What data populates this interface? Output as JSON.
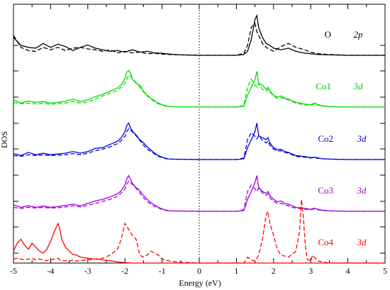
{
  "chart_data": {
    "type": "line",
    "title": "",
    "xlabel": "Energy (eV)",
    "ylabel": "DOS",
    "xlim": [
      -5,
      5
    ],
    "x_ticks": [
      -5,
      -4,
      -3,
      -2,
      -1,
      0,
      1,
      2,
      3,
      4,
      5
    ],
    "fermi_level": 0,
    "grid": false,
    "legend": "inline labels at right of each panel",
    "line_styles": [
      "solid",
      "dashed"
    ],
    "series": [
      {
        "name": "O",
        "orbital": "2p",
        "color": "#000000",
        "label_color": "#000000",
        "x": [
          -5,
          -4.8,
          -4.6,
          -4.4,
          -4.2,
          -4,
          -3.8,
          -3.6,
          -3.4,
          -3.2,
          -3,
          -2.8,
          -2.6,
          -2.4,
          -2.2,
          -2,
          -1.8,
          -1.6,
          -1.4,
          -1.2,
          -1,
          -0.8,
          -0.5,
          0,
          1,
          1.2,
          1.3,
          1.4,
          1.5,
          1.55,
          1.6,
          1.7,
          1.8,
          1.9,
          2,
          2.2,
          2.4,
          2.6,
          2.8,
          3,
          3.2,
          3.5,
          4,
          4.5,
          5
        ],
        "solid": [
          0.45,
          0.25,
          0.2,
          0.18,
          0.3,
          0.2,
          0.28,
          0.22,
          0.12,
          0.2,
          0.26,
          0.18,
          0.14,
          0.1,
          0.12,
          0.08,
          0.14,
          0.08,
          0.1,
          0.06,
          0.05,
          0.03,
          0.01,
          0,
          0,
          0.02,
          0.1,
          0.4,
          0.9,
          1.0,
          0.7,
          0.45,
          0.3,
          0.25,
          0.18,
          0.14,
          0.18,
          0.1,
          0.06,
          0.04,
          0.02,
          0.01,
          0,
          0,
          0
        ],
        "dashed": [
          0.5,
          0.2,
          0.12,
          0.1,
          0.2,
          0.14,
          0.2,
          0.12,
          0.18,
          0.2,
          0.16,
          0.14,
          0.1,
          0.14,
          0.06,
          0.1,
          0.06,
          0.08,
          0.04,
          0.05,
          0.03,
          0.02,
          0.01,
          0,
          0,
          0.05,
          0.25,
          0.7,
          0.8,
          0.6,
          0.5,
          0.3,
          0.2,
          0.15,
          0.1,
          0.22,
          0.3,
          0.2,
          0.15,
          0.08,
          0.04,
          0.02,
          0,
          0,
          0
        ]
      },
      {
        "name": "Co1",
        "orbital": "3d",
        "color": "#00e000",
        "label_color": "#00c800",
        "x": [
          -5,
          -4.8,
          -4.6,
          -4.4,
          -4.2,
          -4,
          -3.8,
          -3.6,
          -3.4,
          -3.2,
          -3,
          -2.8,
          -2.6,
          -2.4,
          -2.2,
          -2.1,
          -2,
          -1.95,
          -1.9,
          -1.85,
          -1.8,
          -1.7,
          -1.6,
          -1.5,
          -1.4,
          -1.3,
          -1.2,
          -1.1,
          -1,
          -0.9,
          -0.8,
          0,
          1,
          1.2,
          1.3,
          1.4,
          1.5,
          1.55,
          1.6,
          1.7,
          1.8,
          1.85,
          1.9,
          2,
          2.1,
          2.2,
          2.3,
          2.4,
          2.5,
          2.6,
          2.8,
          3,
          3.1,
          3.2,
          3.3,
          3.5,
          4,
          5
        ],
        "solid": [
          0.18,
          0.1,
          0.15,
          0.12,
          0.14,
          0.1,
          0.12,
          0.15,
          0.2,
          0.14,
          0.18,
          0.26,
          0.32,
          0.4,
          0.48,
          0.56,
          0.72,
          0.88,
          0.92,
          0.86,
          0.7,
          0.6,
          0.55,
          0.4,
          0.3,
          0.22,
          0.16,
          0.1,
          0.06,
          0.03,
          0.01,
          0,
          0,
          0.02,
          0.3,
          0.5,
          0.7,
          0.9,
          0.6,
          0.55,
          0.45,
          0.5,
          0.4,
          0.3,
          0.25,
          0.28,
          0.22,
          0.2,
          0.16,
          0.12,
          0.08,
          0.06,
          0.1,
          0.06,
          0.04,
          0.01,
          0,
          0
        ],
        "dashed": [
          0.12,
          0.08,
          0.1,
          0.08,
          0.1,
          0.07,
          0.09,
          0.1,
          0.14,
          0.1,
          0.13,
          0.2,
          0.28,
          0.35,
          0.42,
          0.5,
          0.6,
          0.7,
          0.8,
          0.78,
          0.72,
          0.62,
          0.5,
          0.38,
          0.28,
          0.2,
          0.14,
          0.08,
          0.05,
          0.02,
          0.01,
          0,
          0,
          0.04,
          0.5,
          0.7,
          0.55,
          0.5,
          0.6,
          0.45,
          0.4,
          0.45,
          0.38,
          0.28,
          0.22,
          0.24,
          0.2,
          0.18,
          0.14,
          0.1,
          0.06,
          0.05,
          0.08,
          0.05,
          0.03,
          0.01,
          0,
          0
        ]
      },
      {
        "name": "Co2",
        "orbital": "3d",
        "color": "#0000e0",
        "label_color": "#0000e0",
        "x": [
          -5,
          -4.8,
          -4.6,
          -4.4,
          -4.2,
          -4,
          -3.8,
          -3.6,
          -3.4,
          -3.2,
          -3,
          -2.8,
          -2.6,
          -2.4,
          -2.2,
          -2.1,
          -2,
          -1.95,
          -1.9,
          -1.85,
          -1.8,
          -1.7,
          -1.6,
          -1.5,
          -1.4,
          -1.3,
          -1.2,
          -1.1,
          -1,
          -0.9,
          -0.8,
          0,
          1,
          1.2,
          1.3,
          1.4,
          1.5,
          1.55,
          1.6,
          1.7,
          1.8,
          1.85,
          1.9,
          2,
          2.1,
          2.2,
          2.3,
          2.4,
          2.5,
          2.6,
          2.8,
          3,
          3.1,
          3.2,
          3.3,
          3.5,
          4,
          5
        ],
        "solid": [
          0.15,
          0.1,
          0.18,
          0.12,
          0.16,
          0.12,
          0.14,
          0.16,
          0.2,
          0.16,
          0.2,
          0.28,
          0.3,
          0.38,
          0.46,
          0.55,
          0.7,
          0.86,
          0.92,
          0.8,
          0.72,
          0.62,
          0.5,
          0.42,
          0.32,
          0.24,
          0.16,
          0.1,
          0.06,
          0.03,
          0.01,
          0,
          0,
          0.02,
          0.3,
          0.5,
          0.7,
          0.92,
          0.6,
          0.55,
          0.5,
          0.55,
          0.42,
          0.3,
          0.25,
          0.26,
          0.2,
          0.18,
          0.14,
          0.1,
          0.08,
          0.05,
          0.06,
          0.04,
          0.02,
          0.01,
          0,
          0
        ],
        "dashed": [
          0.1,
          0.08,
          0.12,
          0.1,
          0.12,
          0.1,
          0.11,
          0.12,
          0.15,
          0.12,
          0.16,
          0.22,
          0.26,
          0.32,
          0.4,
          0.48,
          0.58,
          0.7,
          0.78,
          0.74,
          0.7,
          0.6,
          0.48,
          0.36,
          0.26,
          0.2,
          0.14,
          0.08,
          0.05,
          0.02,
          0.01,
          0,
          0,
          0.04,
          0.5,
          0.68,
          0.58,
          0.52,
          0.6,
          0.48,
          0.42,
          0.46,
          0.36,
          0.26,
          0.22,
          0.22,
          0.18,
          0.16,
          0.12,
          0.08,
          0.06,
          0.04,
          0.05,
          0.03,
          0.02,
          0.01,
          0,
          0
        ]
      },
      {
        "name": "Co3",
        "orbital": "3d",
        "color": "#a000e0",
        "label_color": "#a000c8",
        "x": [
          -5,
          -4.8,
          -4.6,
          -4.4,
          -4.2,
          -4,
          -3.8,
          -3.6,
          -3.4,
          -3.2,
          -3,
          -2.8,
          -2.6,
          -2.4,
          -2.2,
          -2.1,
          -2,
          -1.95,
          -1.9,
          -1.85,
          -1.8,
          -1.7,
          -1.6,
          -1.5,
          -1.4,
          -1.3,
          -1.2,
          -1.1,
          -1,
          -0.9,
          -0.8,
          0,
          1,
          1.2,
          1.3,
          1.4,
          1.5,
          1.55,
          1.6,
          1.7,
          1.8,
          1.85,
          1.9,
          2,
          2.1,
          2.2,
          2.3,
          2.4,
          2.5,
          2.6,
          2.8,
          3,
          3.1,
          3.2,
          3.3,
          3.5,
          4,
          5
        ],
        "solid": [
          0.16,
          0.1,
          0.14,
          0.1,
          0.13,
          0.1,
          0.12,
          0.15,
          0.18,
          0.14,
          0.2,
          0.26,
          0.3,
          0.36,
          0.44,
          0.52,
          0.66,
          0.82,
          0.9,
          0.8,
          0.7,
          0.6,
          0.52,
          0.4,
          0.3,
          0.22,
          0.16,
          0.1,
          0.06,
          0.03,
          0.01,
          0,
          0,
          0.02,
          0.3,
          0.5,
          0.72,
          0.9,
          0.6,
          0.5,
          0.45,
          0.5,
          0.4,
          0.3,
          0.24,
          0.26,
          0.2,
          0.18,
          0.14,
          0.1,
          0.08,
          0.05,
          0.08,
          0.05,
          0.03,
          0.01,
          0,
          0
        ],
        "dashed": [
          0.1,
          0.07,
          0.1,
          0.08,
          0.1,
          0.08,
          0.09,
          0.11,
          0.14,
          0.11,
          0.15,
          0.2,
          0.25,
          0.3,
          0.38,
          0.46,
          0.56,
          0.68,
          0.76,
          0.72,
          0.68,
          0.58,
          0.46,
          0.34,
          0.25,
          0.18,
          0.12,
          0.08,
          0.05,
          0.02,
          0.01,
          0,
          0,
          0.04,
          0.5,
          0.66,
          0.56,
          0.5,
          0.58,
          0.46,
          0.4,
          0.44,
          0.34,
          0.25,
          0.2,
          0.2,
          0.16,
          0.14,
          0.1,
          0.08,
          0.06,
          0.04,
          0.06,
          0.04,
          0.02,
          0.01,
          0,
          0
        ]
      },
      {
        "name": "Co4",
        "orbital": "3d",
        "color": "#ff0000",
        "label_color": "#ff0000",
        "x": [
          -5,
          -4.9,
          -4.8,
          -4.7,
          -4.6,
          -4.5,
          -4.4,
          -4.3,
          -4.2,
          -4.1,
          -4,
          -3.9,
          -3.8,
          -3.75,
          -3.7,
          -3.6,
          -3.5,
          -3.4,
          -3.3,
          -3.2,
          -3,
          -2.8,
          -2.6,
          -2.4,
          -2.2,
          -2.1,
          -2,
          -1.9,
          -1.8,
          -1.7,
          -1.6,
          -1.5,
          -1.4,
          -1.3,
          -1.2,
          -1.1,
          -1,
          -0.8,
          -0.5,
          0,
          1.2,
          1.3,
          1.4,
          1.5,
          1.6,
          1.7,
          1.8,
          1.85,
          1.9,
          2,
          2.1,
          2.2,
          2.4,
          2.6,
          2.7,
          2.75,
          2.8,
          2.85,
          2.9,
          3,
          3.05,
          3.1,
          3.2,
          3.5,
          4,
          5
        ],
        "solid": [
          0.3,
          0.5,
          0.6,
          0.45,
          0.35,
          0.5,
          0.4,
          0.3,
          0.25,
          0.35,
          0.55,
          0.8,
          1.0,
          0.85,
          0.6,
          0.4,
          0.3,
          0.22,
          0.2,
          0.15,
          0.12,
          0.1,
          0.08,
          0.06,
          0.03,
          0.02,
          0.01,
          0.005,
          0,
          0,
          0,
          0,
          0,
          0,
          0,
          0,
          0,
          0,
          0,
          0,
          0,
          0,
          0,
          0,
          0,
          0,
          0,
          0,
          0,
          0,
          0,
          0,
          0,
          0,
          0,
          0,
          0,
          0,
          0,
          0,
          0,
          0,
          0,
          0,
          0,
          0
        ],
        "dashed": [
          0.1,
          0.12,
          0.1,
          0.08,
          0.1,
          0.12,
          0.08,
          0.1,
          0.08,
          0.06,
          0.08,
          0.1,
          0.12,
          0.08,
          0.06,
          0.06,
          0.05,
          0.08,
          0.05,
          0.06,
          0.08,
          0.1,
          0.12,
          0.2,
          0.35,
          0.6,
          1.0,
          0.85,
          0.7,
          0.6,
          0.2,
          0.15,
          0.2,
          0.3,
          0.25,
          0.2,
          0.1,
          0.05,
          0.02,
          0,
          0,
          0.15,
          0.08,
          0.05,
          0.2,
          0.6,
          1.2,
          1.3,
          1.0,
          0.7,
          0.35,
          0.2,
          0.15,
          0.3,
          0.8,
          1.6,
          1.2,
          0.5,
          0.1,
          0.05,
          0.2,
          0.15,
          0.05,
          0,
          0,
          0
        ]
      }
    ]
  }
}
